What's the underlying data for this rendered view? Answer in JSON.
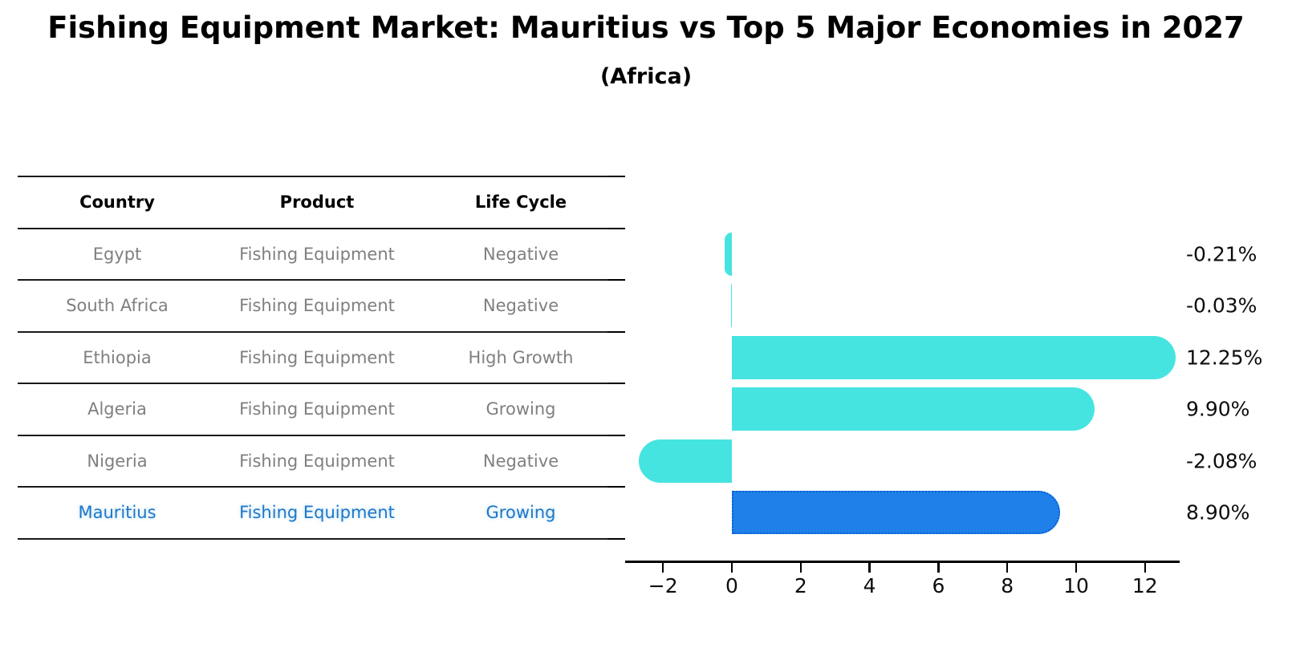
{
  "title": "Fishing Equipment Market: Mauritius vs Top 5 Major Economies in 2027",
  "subtitle": "(Africa)",
  "table": {
    "headers": [
      "Country",
      "Product",
      "Life Cycle"
    ],
    "rows": [
      {
        "country": "Egypt",
        "product": "Fishing Equipment",
        "life_cycle": "Negative",
        "highlight": false
      },
      {
        "country": "South Africa",
        "product": "Fishing Equipment",
        "life_cycle": "Negative",
        "highlight": false
      },
      {
        "country": "Ethiopia",
        "product": "Fishing Equipment",
        "life_cycle": "High Growth",
        "highlight": false
      },
      {
        "country": "Algeria",
        "product": "Fishing Equipment",
        "life_cycle": "Growing",
        "highlight": false
      },
      {
        "country": "Nigeria",
        "product": "Fishing Equipment",
        "life_cycle": "Negative",
        "highlight": false
      },
      {
        "country": "Mauritius",
        "product": "Fishing Equipment",
        "life_cycle": "Growing",
        "highlight": true
      }
    ]
  },
  "chart_data": {
    "type": "bar",
    "orientation": "horizontal",
    "title": "",
    "xlabel": "",
    "ylabel": "",
    "categories": [
      "Egypt",
      "South Africa",
      "Ethiopia",
      "Algeria",
      "Nigeria",
      "Mauritius"
    ],
    "values": [
      -0.21,
      -0.03,
      12.25,
      9.9,
      -2.08,
      8.9
    ],
    "value_labels": [
      "-0.21%",
      "-0.03%",
      "12.25%",
      "9.90%",
      "-2.08%",
      "8.90%"
    ],
    "x_ticks": [
      -2,
      0,
      2,
      4,
      6,
      8,
      10,
      12
    ],
    "x_tick_labels": [
      "−2",
      "0",
      "2",
      "4",
      "6",
      "8",
      "10",
      "12"
    ],
    "xlim": [
      -3.1,
      13.0
    ],
    "grid": false,
    "legend": null,
    "bar_color": "#46e4e0",
    "highlight_color": "#1e80e8",
    "highlight_border_color": "#0c5fd6",
    "highlight_index": 5
  },
  "colors": {
    "row_text": "#7f7f7f",
    "highlight_text": "#1f77c8",
    "line": "#1a1a1a",
    "label_text": "#0d0d0d"
  }
}
